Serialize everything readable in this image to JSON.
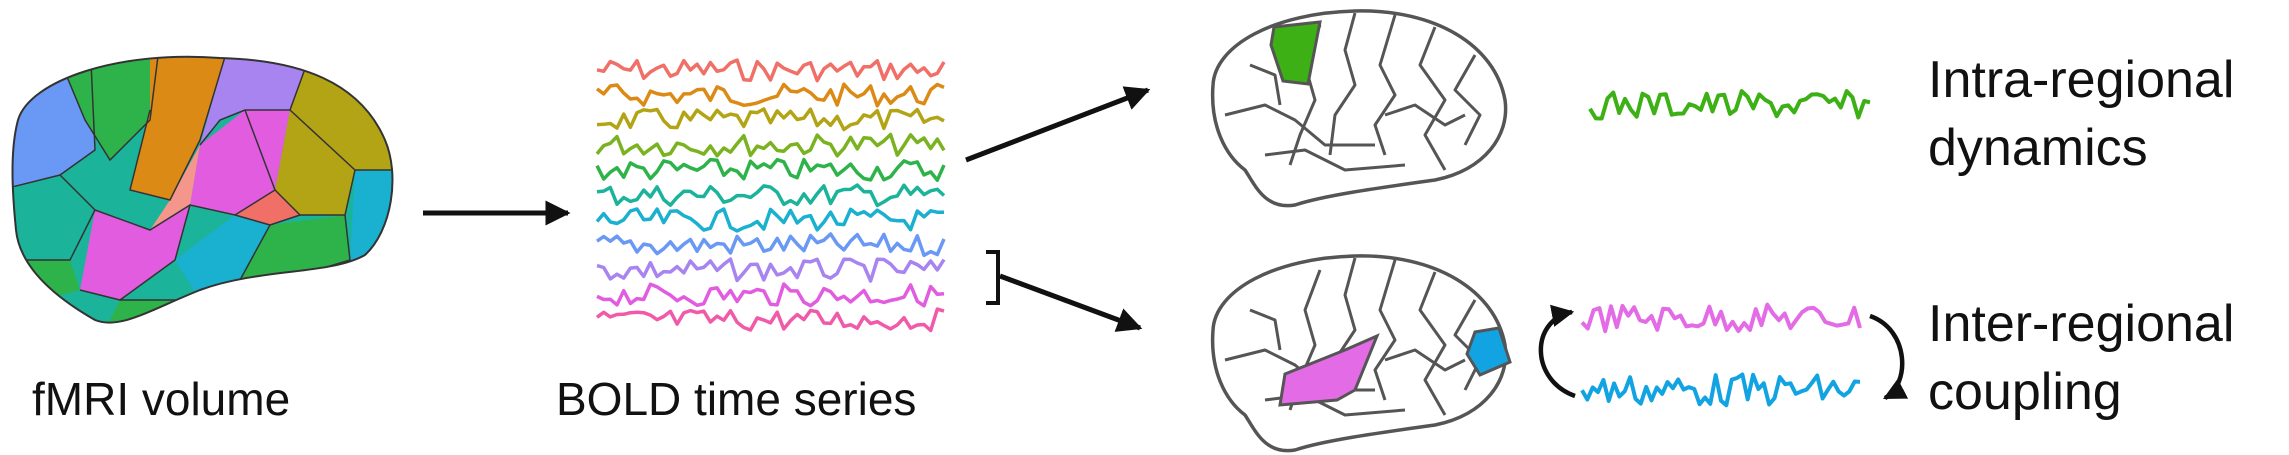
{
  "labels": {
    "fmri": "fMRI volume",
    "bold": "BOLD time series",
    "intra_line1": "Intra-regional",
    "intra_line2": "dynamics",
    "inter_line1": "Inter-regional",
    "inter_line2": "coupling"
  },
  "colors": {
    "series": [
      "#f07068",
      "#dc8a16",
      "#b3a416",
      "#7ab31f",
      "#2eb34a",
      "#1cb39b",
      "#1ab0cf",
      "#6a98f5",
      "#a884f0",
      "#e25ce0",
      "#f05aa8"
    ],
    "brain_outline": "#555555",
    "highlight_top": "#3cb015",
    "highlight_pink": "#e36be6",
    "highlight_blue": "#12a4e2",
    "arrow": "#111111"
  },
  "icons": {
    "brain": "brain-parcellation-icon",
    "arrow": "right-arrow-icon",
    "bracket": "bracket-icon",
    "cycle": "cycle-arrows-icon"
  }
}
